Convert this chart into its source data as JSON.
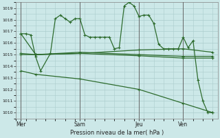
{
  "bg_color": "#cce8e8",
  "grid_color": "#aacccc",
  "line_color": "#2d6b2d",
  "marker_color": "#2d6b2d",
  "ylim": [
    1009.5,
    1019.5
  ],
  "yticks": [
    1010,
    1011,
    1012,
    1013,
    1014,
    1015,
    1016,
    1017,
    1018,
    1019
  ],
  "xlabel": "Pression niveau de la mer( hPa )",
  "xtick_labels": [
    "Mer",
    "Sam",
    "Jeu",
    "Ven"
  ],
  "xtick_pos": [
    0,
    48,
    96,
    132
  ],
  "vline_pos": [
    0,
    48,
    96,
    132
  ],
  "series1_x": [
    0,
    4,
    8,
    12,
    16,
    24,
    28,
    32,
    36,
    40,
    44,
    48,
    52,
    56,
    60,
    64,
    68,
    72,
    76,
    80,
    84,
    88,
    92,
    96,
    100,
    104,
    108,
    112,
    116,
    120,
    124,
    128,
    132,
    136,
    140,
    144,
    148,
    152,
    156
  ],
  "series1_y": [
    1016.8,
    1016.8,
    1016.7,
    1014.8,
    1013.6,
    1015.1,
    1018.1,
    1018.4,
    1018.1,
    1017.8,
    1018.1,
    1018.1,
    1016.7,
    1016.5,
    1016.5,
    1016.5,
    1016.5,
    1016.5,
    1015.5,
    1015.6,
    1019.2,
    1019.5,
    1019.2,
    1018.3,
    1018.4,
    1018.4,
    1017.7,
    1015.9,
    1015.5,
    1015.5,
    1015.5,
    1015.5,
    1016.5,
    1015.6,
    1016.2,
    1012.8,
    1011.0,
    1010.0,
    1010.0
  ],
  "series2_x": [
    0,
    12,
    48,
    96,
    132,
    156
  ],
  "series2_y": [
    1016.8,
    1015.0,
    1015.1,
    1015.4,
    1015.5,
    1015.2
  ],
  "series3_x": [
    0,
    12,
    48,
    96,
    132,
    156
  ],
  "series3_y": [
    1015.1,
    1015.0,
    1015.2,
    1015.0,
    1014.85,
    1014.85
  ],
  "series4_x": [
    0,
    12,
    48,
    96,
    132,
    156
  ],
  "series4_y": [
    1015.0,
    1015.0,
    1015.1,
    1014.9,
    1014.7,
    1014.7
  ],
  "series5_x": [
    0,
    12,
    48,
    96,
    132,
    156
  ],
  "series5_y": [
    1013.6,
    1013.3,
    1012.9,
    1012.0,
    1010.8,
    1010.0
  ],
  "xlim": [
    -4,
    160
  ],
  "figsize": [
    3.2,
    2.0
  ],
  "dpi": 100
}
